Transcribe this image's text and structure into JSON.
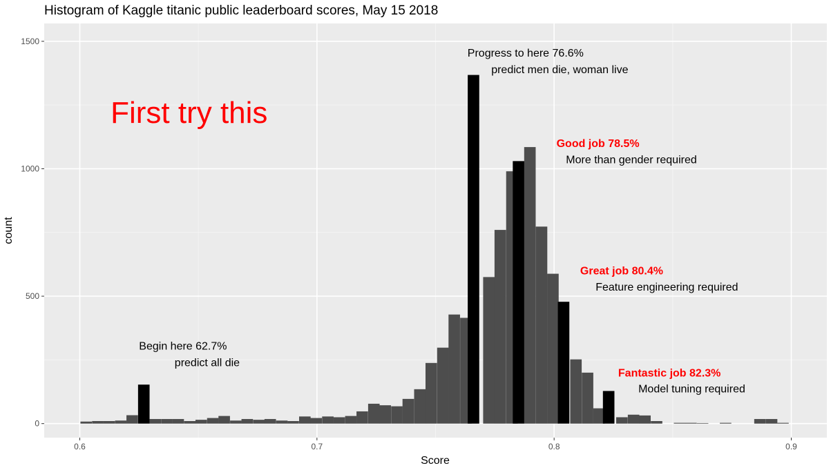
{
  "chart_data": {
    "type": "bar",
    "title": "Histogram of Kaggle titanic public leaderboard scores, May 15 2018",
    "xlabel": "Score",
    "ylabel": "count",
    "xlim": [
      0.585,
      0.915
    ],
    "ylim": [
      -55,
      1570
    ],
    "x_ticks": [
      0.6,
      0.7,
      0.8,
      0.9
    ],
    "x_tick_labels": [
      "0.6",
      "0.7",
      "0.8",
      "0.9"
    ],
    "y_ticks": [
      0,
      500,
      1000,
      1500
    ],
    "y_tick_labels": [
      "0",
      "500",
      "1000",
      "1500"
    ],
    "grid": true,
    "bin_width": 0.00485,
    "bins": [
      {
        "x": 0.6027,
        "count": 8,
        "highlight": false
      },
      {
        "x": 0.6076,
        "count": 10,
        "highlight": false
      },
      {
        "x": 0.6124,
        "count": 10,
        "highlight": false
      },
      {
        "x": 0.6173,
        "count": 12,
        "highlight": false
      },
      {
        "x": 0.6221,
        "count": 33,
        "highlight": false
      },
      {
        "x": 0.627,
        "count": 153,
        "highlight": true
      },
      {
        "x": 0.6318,
        "count": 18,
        "highlight": false
      },
      {
        "x": 0.6367,
        "count": 18,
        "highlight": false
      },
      {
        "x": 0.6415,
        "count": 18,
        "highlight": false
      },
      {
        "x": 0.6464,
        "count": 10,
        "highlight": false
      },
      {
        "x": 0.6512,
        "count": 15,
        "highlight": false
      },
      {
        "x": 0.6561,
        "count": 22,
        "highlight": false
      },
      {
        "x": 0.6609,
        "count": 30,
        "highlight": false
      },
      {
        "x": 0.6658,
        "count": 12,
        "highlight": false
      },
      {
        "x": 0.6706,
        "count": 18,
        "highlight": false
      },
      {
        "x": 0.6755,
        "count": 15,
        "highlight": false
      },
      {
        "x": 0.6803,
        "count": 18,
        "highlight": false
      },
      {
        "x": 0.6852,
        "count": 12,
        "highlight": false
      },
      {
        "x": 0.69,
        "count": 10,
        "highlight": false
      },
      {
        "x": 0.6949,
        "count": 28,
        "highlight": false
      },
      {
        "x": 0.6997,
        "count": 22,
        "highlight": false
      },
      {
        "x": 0.7046,
        "count": 28,
        "highlight": false
      },
      {
        "x": 0.7094,
        "count": 25,
        "highlight": false
      },
      {
        "x": 0.7143,
        "count": 30,
        "highlight": false
      },
      {
        "x": 0.7191,
        "count": 48,
        "highlight": false
      },
      {
        "x": 0.724,
        "count": 78,
        "highlight": false
      },
      {
        "x": 0.7288,
        "count": 72,
        "highlight": false
      },
      {
        "x": 0.7337,
        "count": 68,
        "highlight": false
      },
      {
        "x": 0.7385,
        "count": 97,
        "highlight": false
      },
      {
        "x": 0.7434,
        "count": 135,
        "highlight": false
      },
      {
        "x": 0.7482,
        "count": 238,
        "highlight": false
      },
      {
        "x": 0.7531,
        "count": 298,
        "highlight": false
      },
      {
        "x": 0.7579,
        "count": 428,
        "highlight": false
      },
      {
        "x": 0.7628,
        "count": 415,
        "highlight": false
      },
      {
        "x": 0.766,
        "count": 1368,
        "highlight": true
      },
      {
        "x": 0.7725,
        "count": 575,
        "highlight": false
      },
      {
        "x": 0.7773,
        "count": 760,
        "highlight": false
      },
      {
        "x": 0.7822,
        "count": 990,
        "highlight": false
      },
      {
        "x": 0.785,
        "count": 1030,
        "highlight": true
      },
      {
        "x": 0.7898,
        "count": 1085,
        "highlight": false
      },
      {
        "x": 0.7947,
        "count": 773,
        "highlight": false
      },
      {
        "x": 0.7995,
        "count": 588,
        "highlight": false
      },
      {
        "x": 0.804,
        "count": 478,
        "highlight": true
      },
      {
        "x": 0.8092,
        "count": 252,
        "highlight": false
      },
      {
        "x": 0.8141,
        "count": 200,
        "highlight": false
      },
      {
        "x": 0.8189,
        "count": 60,
        "highlight": false
      },
      {
        "x": 0.823,
        "count": 128,
        "highlight": true
      },
      {
        "x": 0.8286,
        "count": 25,
        "highlight": false
      },
      {
        "x": 0.8335,
        "count": 35,
        "highlight": false
      },
      {
        "x": 0.8383,
        "count": 32,
        "highlight": false
      },
      {
        "x": 0.8432,
        "count": 10,
        "highlight": false
      },
      {
        "x": 0.8529,
        "count": 3,
        "highlight": false
      },
      {
        "x": 0.8577,
        "count": 3,
        "highlight": false
      },
      {
        "x": 0.8626,
        "count": 2,
        "highlight": false
      },
      {
        "x": 0.8723,
        "count": 3,
        "highlight": false
      },
      {
        "x": 0.8868,
        "count": 18,
        "highlight": false
      },
      {
        "x": 0.8917,
        "count": 18,
        "highlight": false
      },
      {
        "x": 0.8965,
        "count": 3,
        "highlight": false
      }
    ],
    "annotations": [
      {
        "id": "first-try",
        "lines": [
          "First try this"
        ],
        "x": 0.613,
        "y": 1180,
        "style": "big",
        "anchor": "start"
      },
      {
        "id": "begin-here",
        "lines": [
          "Begin here 62.7%",
          "predict all die"
        ],
        "x": 0.625,
        "y": 290,
        "style": "black",
        "anchor": "start",
        "indent": [
          0,
          15
        ],
        "line_step": 65
      },
      {
        "id": "progress",
        "lines": [
          "Progress to here 76.6%",
          "predict men die, woman live"
        ],
        "x": 0.7635,
        "y": 1440,
        "style": "black",
        "anchor": "start",
        "indent": [
          0,
          10
        ],
        "line_step": 65
      },
      {
        "id": "good-job",
        "lines": [
          "Good job 78.5%"
        ],
        "x": 0.801,
        "y": 1085,
        "style": "red",
        "anchor": "start"
      },
      {
        "id": "good-job-sub",
        "lines": [
          "More than gender required"
        ],
        "x": 0.805,
        "y": 1022,
        "style": "black",
        "anchor": "start"
      },
      {
        "id": "great-job",
        "lines": [
          "Great job 80.4%"
        ],
        "x": 0.811,
        "y": 585,
        "style": "red",
        "anchor": "start"
      },
      {
        "id": "great-job-sub",
        "lines": [
          "Feature engineering required"
        ],
        "x": 0.8175,
        "y": 522,
        "style": "black",
        "anchor": "start"
      },
      {
        "id": "fantastic-job",
        "lines": [
          "Fantastic job 82.3%"
        ],
        "x": 0.827,
        "y": 185,
        "style": "red",
        "anchor": "start"
      },
      {
        "id": "fantastic-job-sub",
        "lines": [
          "Model tuning required"
        ],
        "x": 0.8355,
        "y": 122,
        "style": "black",
        "anchor": "start"
      }
    ],
    "colors": {
      "panel": "#ebebeb",
      "grid_major": "#ffffff",
      "grid_minor": "#f4f4f4",
      "bar": "#4d4d4d",
      "bar_highlight": "#000000",
      "tick": "#333333"
    }
  }
}
